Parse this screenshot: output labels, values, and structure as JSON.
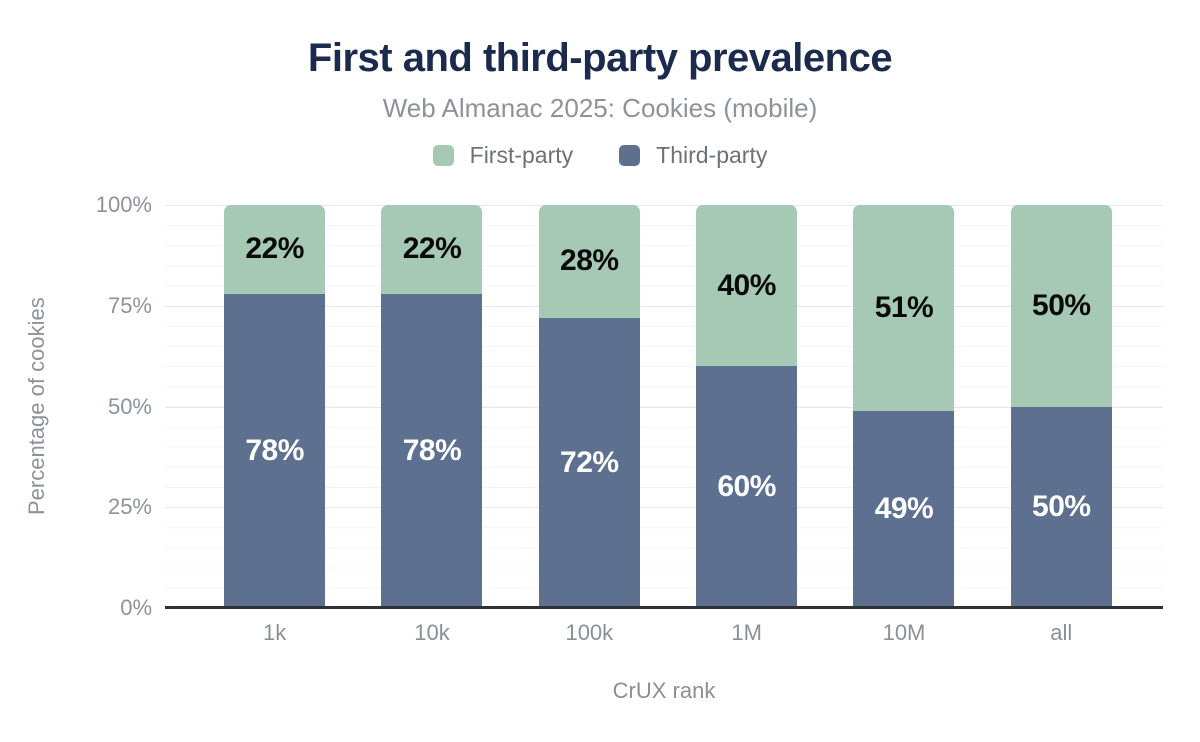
{
  "header": {
    "title": "First and third-party prevalence",
    "subtitle": "Web Almanac 2025: Cookies (mobile)"
  },
  "legend": {
    "items": [
      {
        "label": "First-party",
        "color": "#a6c9b5"
      },
      {
        "label": "Third-party",
        "color": "#5d7090"
      }
    ]
  },
  "chart_data": {
    "type": "bar",
    "stacked": true,
    "title": "First and third-party prevalence",
    "subtitle": "Web Almanac 2025: Cookies (mobile)",
    "categories": [
      "1k",
      "10k",
      "100k",
      "1M",
      "10M",
      "all"
    ],
    "series": [
      {
        "name": "Third-party",
        "color": "#5d7090",
        "label_color": "#ffffff",
        "stack_order": "bottom",
        "values": [
          78,
          78,
          72,
          60,
          49,
          50
        ]
      },
      {
        "name": "First-party",
        "color": "#a6c9b5",
        "label_color": "#0a0a0a",
        "stack_order": "top",
        "values": [
          22,
          22,
          28,
          40,
          51,
          50
        ]
      }
    ],
    "value_label_suffix": "%",
    "xlabel": "CrUX rank",
    "ylabel": "Percentage of cookies",
    "ylim": [
      0,
      100
    ],
    "y_ticks": [
      {
        "label": "0%",
        "value": 0
      },
      {
        "label": "25%",
        "value": 25
      },
      {
        "label": "50%",
        "value": 50
      },
      {
        "label": "75%",
        "value": 75
      },
      {
        "label": "100%",
        "value": 100
      }
    ],
    "grid": "horizontal, minor every 5%, major every 25%",
    "legend_position": "top"
  },
  "colors": {
    "title_text": "#1b2b4e",
    "secondary_text": "#8d929b",
    "axis_line": "#2e3136",
    "major_gridline": "#e6e8ea",
    "minor_gridline": "#f3f4f5",
    "background": "#ffffff"
  }
}
